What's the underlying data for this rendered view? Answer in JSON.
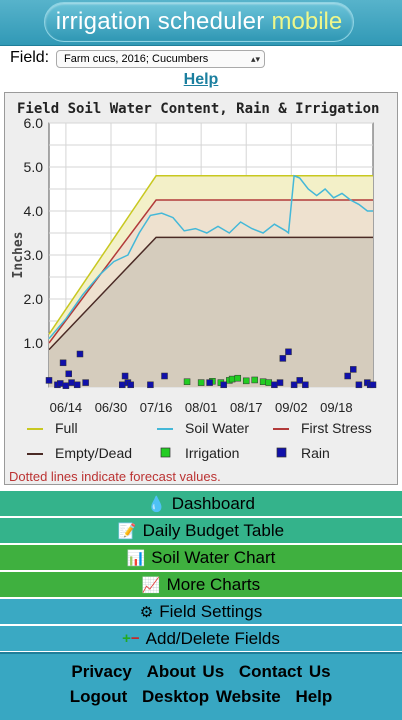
{
  "header": {
    "logo_main": "irrigation scheduler",
    "logo_accent": "mobile"
  },
  "field": {
    "label": "Field:",
    "selected": "Farm cucs, 2016; Cucumbers"
  },
  "help": {
    "label": "Help"
  },
  "chart_data": {
    "type": "line",
    "title": "Field Soil Water Content, Rain & Irrigation",
    "xlabel": "",
    "ylabel": "Inches",
    "ylim": [
      0,
      6
    ],
    "yticks": [
      "6.0",
      "5.0",
      "4.0",
      "3.0",
      "2.0",
      "1.0"
    ],
    "xticks": [
      "06/14",
      "06/30",
      "07/16",
      "08/01",
      "08/17",
      "09/02",
      "09/18"
    ],
    "legend_placement": "bottom",
    "series": [
      {
        "name": "Full",
        "color": "#c8c820",
        "x": [
          "06/08",
          "07/16",
          "10/01"
        ],
        "y": [
          1.2,
          4.8,
          4.8
        ]
      },
      {
        "name": "First Stress",
        "color": "#b23a3a",
        "x": [
          "06/08",
          "07/16",
          "10/01"
        ],
        "y": [
          1.0,
          4.25,
          4.25
        ]
      },
      {
        "name": "Empty/Dead",
        "color": "#4a2a25",
        "x": [
          "06/08",
          "07/16",
          "10/01"
        ],
        "y": [
          0.85,
          3.4,
          3.4
        ]
      },
      {
        "name": "Soil Water",
        "color": "#44b8d8",
        "x": [
          "06/08",
          "06/14",
          "06/20",
          "06/26",
          "07/01",
          "07/06",
          "07/10",
          "07/14",
          "07/18",
          "07/22",
          "07/26",
          "07/30",
          "08/03",
          "08/07",
          "08/11",
          "08/15",
          "08/19",
          "08/23",
          "08/27",
          "08/31",
          "09/01",
          "09/03",
          "09/05",
          "09/08",
          "09/11",
          "09/14",
          "09/17",
          "09/20",
          "09/23",
          "09/26",
          "09/29",
          "10/01"
        ],
        "y": [
          1.1,
          1.55,
          2.1,
          2.55,
          2.85,
          3.0,
          3.5,
          3.9,
          3.95,
          3.85,
          3.55,
          3.6,
          3.5,
          3.65,
          3.5,
          3.75,
          3.6,
          3.5,
          3.7,
          3.55,
          3.5,
          4.8,
          4.75,
          4.5,
          4.35,
          4.5,
          4.3,
          4.4,
          4.25,
          4.15,
          4.0,
          4.0
        ]
      },
      {
        "name": "Irrigation",
        "color": "#22cc22",
        "marker": "square",
        "x": [
          "07/27",
          "08/01",
          "08/05",
          "08/08",
          "08/11",
          "08/12",
          "08/14",
          "08/17",
          "08/20",
          "08/23",
          "08/25"
        ],
        "y": [
          0.12,
          0.1,
          0.13,
          0.1,
          0.15,
          0.18,
          0.2,
          0.14,
          0.16,
          0.12,
          0.1
        ]
      },
      {
        "name": "Rain",
        "color": "#1010aa",
        "marker": "square",
        "x": [
          "06/08",
          "06/11",
          "06/12",
          "06/13",
          "06/14",
          "06/15",
          "06/16",
          "06/18",
          "06/19",
          "06/21",
          "07/04",
          "07/05",
          "07/06",
          "07/07",
          "07/14",
          "07/19",
          "08/04",
          "08/09",
          "08/27",
          "08/29",
          "08/30",
          "09/01",
          "09/03",
          "09/05",
          "09/07",
          "09/22",
          "09/24",
          "09/26",
          "09/29",
          "09/30",
          "10/01"
        ],
        "y": [
          0.15,
          0.05,
          0.08,
          0.55,
          0.03,
          0.3,
          0.1,
          0.05,
          0.75,
          0.1,
          0.05,
          0.25,
          0.1,
          0.05,
          0.05,
          0.25,
          0.1,
          0.05,
          0.05,
          0.1,
          0.65,
          0.8,
          0.05,
          0.15,
          0.05,
          0.25,
          0.4,
          0.05,
          0.1,
          0.05,
          0.05
        ]
      }
    ],
    "legend_entries": [
      "Full",
      "Soil Water",
      "First Stress",
      "Empty/Dead",
      "Irrigation",
      "Rain"
    ],
    "note": "Dotted lines indicate forecast values."
  },
  "nav": {
    "dashboard": "Dashboard",
    "daily_budget": "Daily Budget Table",
    "soil_water_chart": "Soil Water Chart",
    "more_charts": "More Charts",
    "field_settings": "Field Settings",
    "add_delete": "Add/Delete Fields"
  },
  "nav_icons": {
    "dashboard": "water-drop-icon",
    "daily_budget": "table-pen-icon",
    "soil_water_chart": "bar-chart-icon",
    "more_charts": "color-bars-icon",
    "field_settings": "gear-icon",
    "add_delete": "plus-minus-icon"
  },
  "footer": {
    "privacy": "Privacy",
    "about": "About Us",
    "contact": "Contact Us",
    "logout": "Logout",
    "desktop": "Desktop Website",
    "help": "Help"
  }
}
